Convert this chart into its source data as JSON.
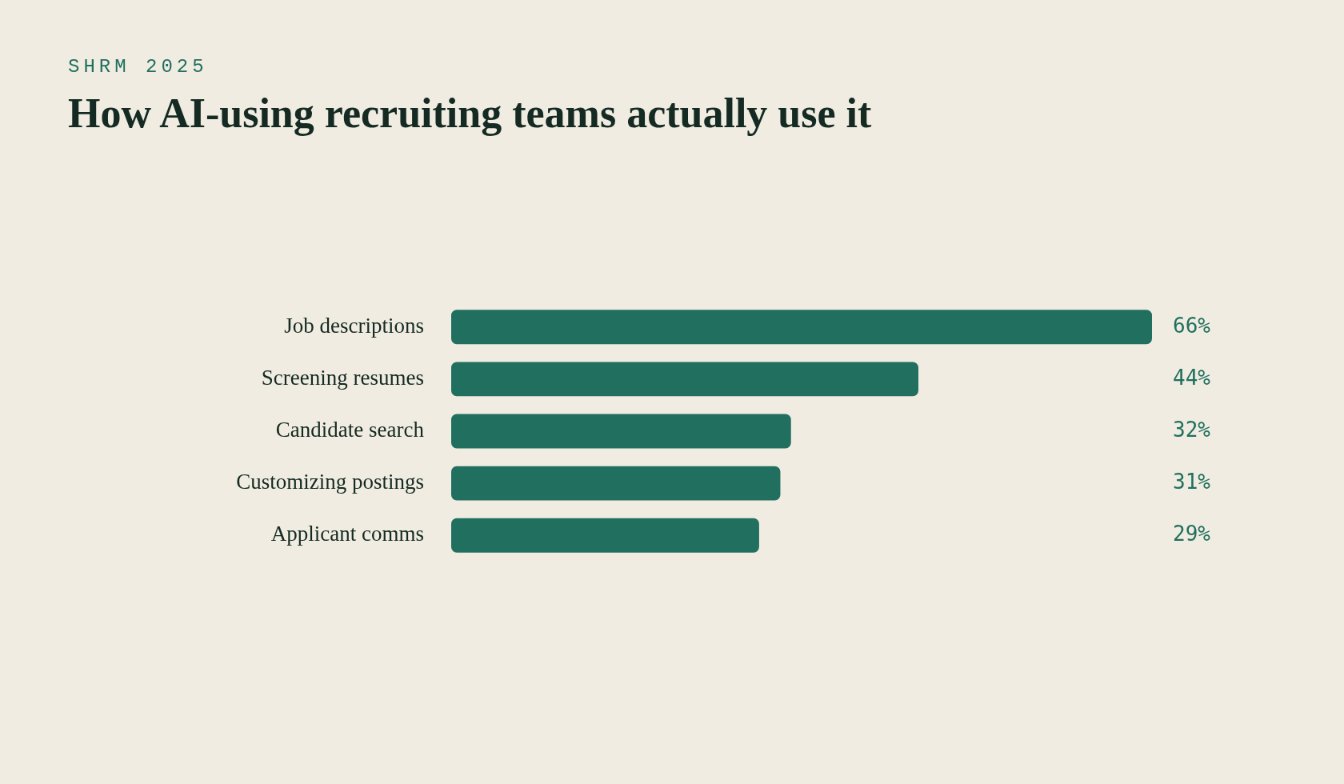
{
  "chart_data": {
    "type": "bar",
    "orientation": "horizontal",
    "title": "How AI-using recruiting teams actually use it",
    "subtitle": "SHRM 2025",
    "categories": [
      "Job descriptions",
      "Screening resumes",
      "Candidate search",
      "Customizing postings",
      "Applicant comms"
    ],
    "values": [
      66,
      44,
      32,
      31,
      29
    ],
    "color": "#21705f",
    "value_labels": [
      "66%",
      "44%",
      "32%",
      "31%",
      "29%"
    ],
    "legend": false,
    "tick_labels": "y"
  }
}
